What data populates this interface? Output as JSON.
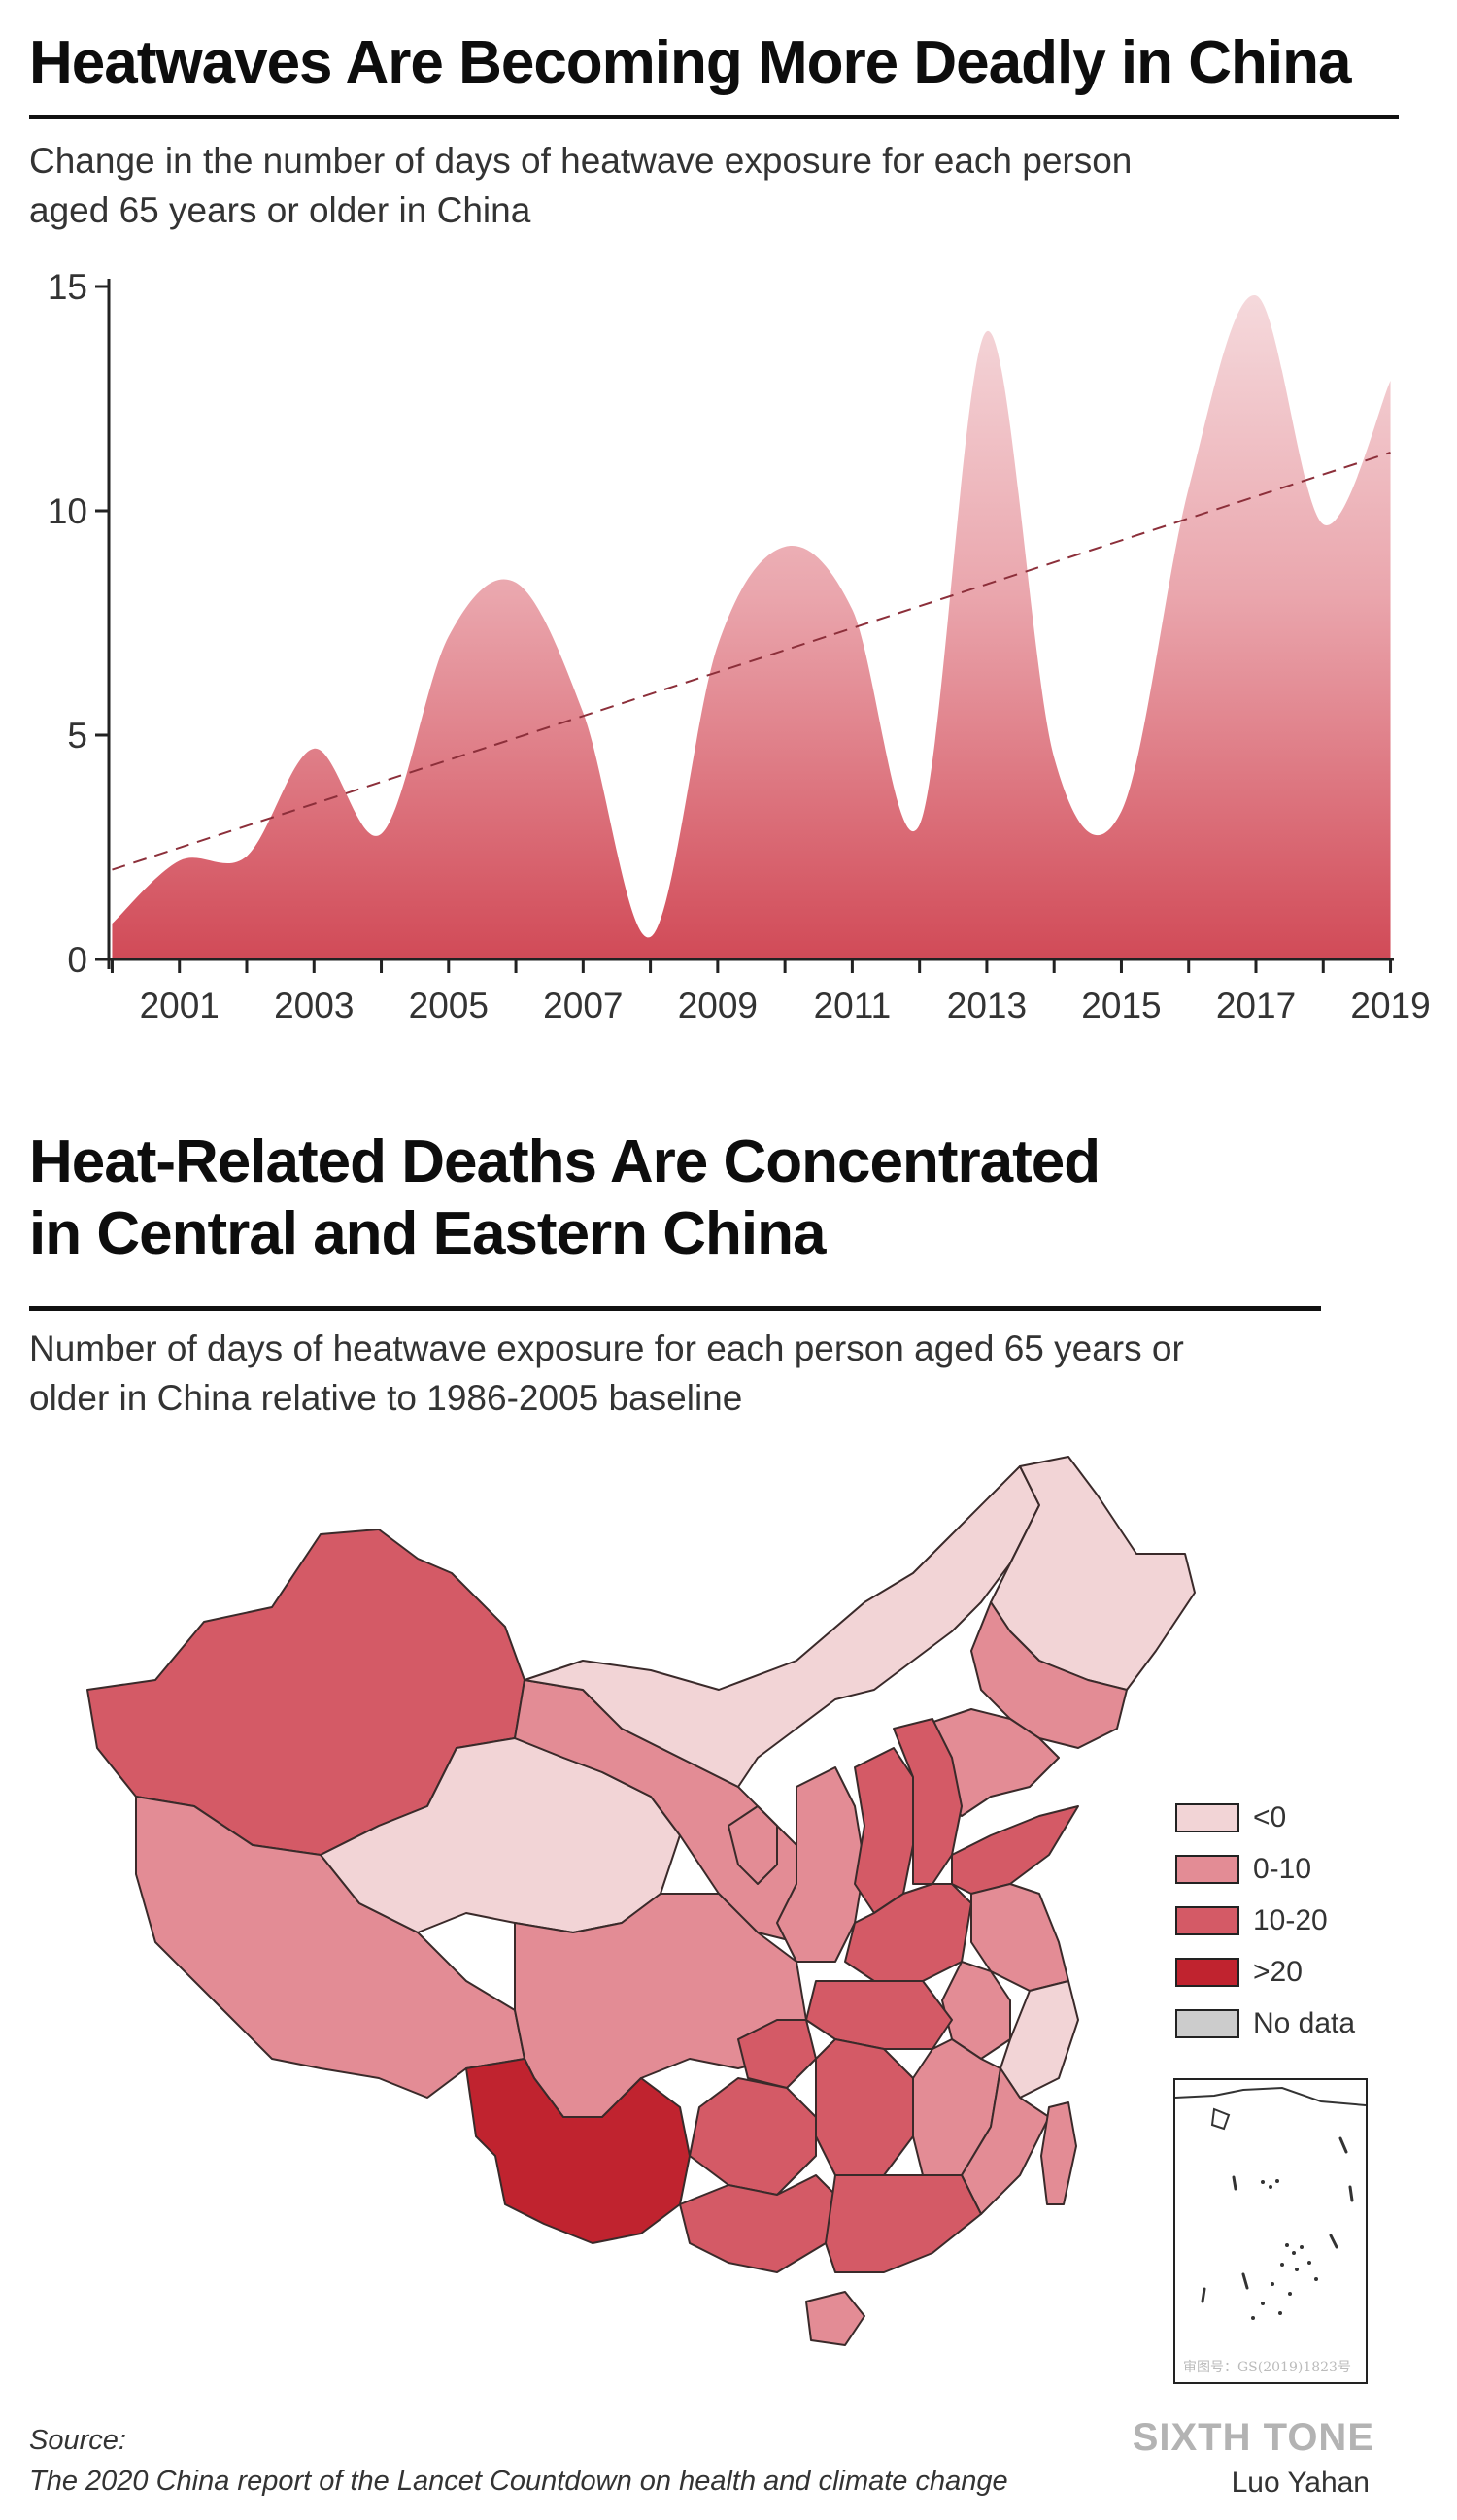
{
  "chart": {
    "title": "Heatwaves Are Becoming More Deadly in China",
    "subtitle_line1": "Change in the number of days of heatwave exposure for each person",
    "subtitle_line2": "aged 65 years or older in China"
  },
  "chart_data": {
    "type": "area",
    "title": "Heatwaves Are Becoming More Deadly in China",
    "subtitle": "Change in the number of days of heatwave exposure for each person aged 65 years or older in China",
    "xlabel": "",
    "ylabel": "",
    "x": [
      2000,
      2001,
      2002,
      2003,
      2004,
      2005,
      2006,
      2007,
      2008,
      2009,
      2010,
      2011,
      2012,
      2013,
      2014,
      2015,
      2016,
      2017,
      2018,
      2019
    ],
    "y": [
      0.8,
      2.2,
      2.3,
      4.7,
      2.8,
      7.2,
      8.4,
      5.5,
      0.5,
      7.0,
      9.2,
      7.8,
      3.0,
      14.0,
      4.5,
      3.3,
      10.5,
      14.8,
      9.7,
      12.9
    ],
    "xticks": [
      2001,
      2003,
      2005,
      2007,
      2009,
      2011,
      2013,
      2015,
      2017,
      2019
    ],
    "yticks": [
      0,
      5,
      10,
      15
    ],
    "xlim": [
      1999.95,
      2019.05
    ],
    "ylim": [
      0,
      15
    ],
    "trendline": {
      "style": "dashed",
      "start": [
        2000,
        2.0
      ],
      "end": [
        2019,
        11.3
      ]
    },
    "colors": {
      "fill_top": "#f5d9dc",
      "fill_bottom": "#d14a57",
      "trend": "#8c2f3a",
      "axis": "#222222"
    }
  },
  "map": {
    "title_line1": "Heat-Related Deaths Are Concentrated",
    "title_line2": "in Central and Eastern China",
    "subtitle_line1": "Number of days of heatwave exposure for each person aged 65 years or",
    "subtitle_line2": "older in China relative to 1986-2005 baseline",
    "legend": [
      {
        "label": "<0",
        "color": "#f2d4d6"
      },
      {
        "label": "0-10",
        "color": "#e38c95"
      },
      {
        "label": "10-20",
        "color": "#d45a66"
      },
      {
        "label": ">20",
        "color": "#c0232f"
      },
      {
        "label": "No data",
        "color": "#cccccc"
      }
    ],
    "inset_stamp": "审图号：GS(2019)1823号"
  },
  "footer": {
    "source_label": "Source:",
    "source_text": "The 2020 China report of the Lancet Countdown on health and climate change",
    "brand": "SIXTH TONE",
    "author": "Luo Yahan"
  }
}
